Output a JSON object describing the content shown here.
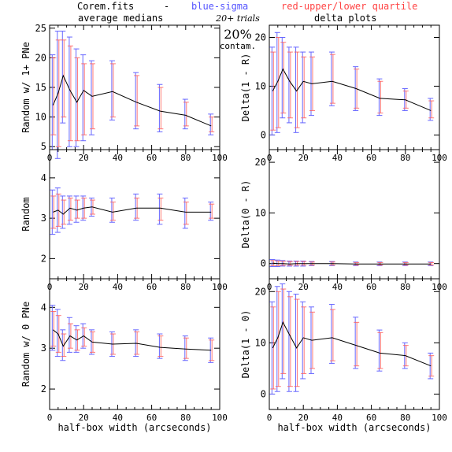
{
  "header": {
    "file": "Corem.fits",
    "dash": "-",
    "blue_label": "blue-sigma",
    "red_label": "red-upper/lower quartile",
    "col1_title": "average medians",
    "col2_title": "delta plots",
    "trials": "20+ trials",
    "contam_pct": "20%",
    "contam": "contam."
  },
  "colors": {
    "line": "#000000",
    "sigma": "#6666ff",
    "quartile": "#ff5555",
    "frame": "#000000"
  },
  "chart_data": [
    {
      "type": "line",
      "ylabel": "Random w/ 1+ PNe",
      "xlabel": "",
      "xlim": [
        0,
        100
      ],
      "ylim": [
        4.5,
        25.5
      ],
      "xticks": [
        0,
        20,
        40,
        60,
        80,
        100
      ],
      "yticks": [
        5,
        10,
        15,
        20,
        25
      ],
      "series": [
        {
          "x": [
            2,
            5,
            8,
            12,
            16,
            20,
            25,
            37,
            51,
            65,
            80,
            95
          ],
          "y": [
            12,
            14,
            17,
            14.5,
            12.5,
            14.5,
            13.5,
            14.3,
            12.5,
            11,
            10.3,
            8.5
          ],
          "sigma_lo": [
            4.5,
            3,
            9,
            5,
            5,
            6,
            7,
            9.5,
            8,
            7.5,
            8,
            7
          ],
          "sigma_hi": [
            20.5,
            24.5,
            24.5,
            23.5,
            21.5,
            20.5,
            19.5,
            19.5,
            17.5,
            15.5,
            13,
            10.5
          ],
          "q_lo": [
            7,
            5,
            10,
            6,
            6,
            7,
            8,
            10,
            8.5,
            8,
            8.5,
            7.5
          ],
          "q_hi": [
            20,
            23,
            23,
            22,
            20,
            19,
            19,
            19,
            17,
            15,
            12.5,
            10
          ]
        }
      ]
    },
    {
      "type": "line",
      "ylabel": "Delta(1 - R)",
      "xlabel": "",
      "xlim": [
        0,
        100
      ],
      "ylim": [
        -3,
        22.5
      ],
      "xticks": [
        0,
        20,
        40,
        60,
        80,
        100
      ],
      "yticks": [
        0,
        10,
        20
      ],
      "series": [
        {
          "x": [
            2,
            5,
            8,
            12,
            16,
            20,
            25,
            37,
            51,
            65,
            80,
            95
          ],
          "y": [
            9,
            11,
            13.5,
            11,
            9,
            11,
            10.5,
            11,
            9.5,
            7.5,
            7.2,
            5
          ],
          "sigma_lo": [
            0,
            0.5,
            3.5,
            2.5,
            0.5,
            2.5,
            4,
            6,
            5,
            4,
            5,
            3
          ],
          "sigma_hi": [
            18,
            21,
            20,
            18,
            18,
            17,
            17,
            17,
            14,
            11.5,
            9.5,
            7.5
          ],
          "q_lo": [
            1,
            1.5,
            4.5,
            3.5,
            1.5,
            3.5,
            5,
            6.5,
            5.5,
            4.5,
            5.5,
            3.5
          ],
          "q_hi": [
            17,
            20,
            19,
            17,
            17,
            16,
            16,
            16.5,
            13.5,
            11,
            9,
            7
          ]
        }
      ]
    },
    {
      "type": "line",
      "ylabel": "Random",
      "xlabel": "",
      "xlim": [
        0,
        100
      ],
      "ylim": [
        1.5,
        4.7
      ],
      "xticks": [
        0,
        20,
        40,
        60,
        80,
        100
      ],
      "yticks": [
        2,
        3,
        4
      ],
      "series": [
        {
          "x": [
            2,
            5,
            8,
            12,
            16,
            20,
            25,
            37,
            51,
            65,
            80,
            95
          ],
          "y": [
            3.15,
            3.2,
            3.1,
            3.25,
            3.2,
            3.25,
            3.28,
            3.15,
            3.25,
            3.25,
            3.15,
            3.15
          ],
          "sigma_lo": [
            2.6,
            2.65,
            2.75,
            2.85,
            2.9,
            2.95,
            3.05,
            2.9,
            2.95,
            2.85,
            2.75,
            2.95
          ],
          "sigma_hi": [
            3.7,
            3.75,
            3.55,
            3.55,
            3.55,
            3.55,
            3.5,
            3.5,
            3.6,
            3.6,
            3.5,
            3.4
          ],
          "q_lo": [
            2.75,
            2.8,
            2.85,
            2.95,
            3.0,
            3.0,
            3.1,
            2.95,
            3.0,
            2.95,
            2.85,
            3.0
          ],
          "q_hi": [
            3.55,
            3.6,
            3.45,
            3.5,
            3.45,
            3.5,
            3.45,
            3.4,
            3.5,
            3.5,
            3.4,
            3.35
          ]
        }
      ]
    },
    {
      "type": "line",
      "ylabel": "Delta(0 - R)",
      "xlabel": "",
      "xlim": [
        0,
        100
      ],
      "ylim": [
        -3,
        22.5
      ],
      "xticks": [
        0,
        20,
        40,
        60,
        80,
        100
      ],
      "yticks": [
        0,
        10,
        20
      ],
      "series": [
        {
          "x": [
            2,
            5,
            8,
            12,
            16,
            20,
            25,
            37,
            51,
            65,
            80,
            95
          ],
          "y": [
            0.1,
            0,
            0,
            -0.1,
            0,
            0,
            0,
            0,
            -0.1,
            -0.1,
            -0.1,
            -0.1
          ],
          "sigma_lo": [
            -0.6,
            -0.6,
            -0.5,
            -0.5,
            -0.5,
            -0.5,
            -0.4,
            -0.4,
            -0.4,
            -0.4,
            -0.4,
            -0.4
          ],
          "sigma_hi": [
            0.8,
            0.7,
            0.6,
            0.5,
            0.5,
            0.5,
            0.4,
            0.4,
            0.3,
            0.3,
            0.3,
            0.3
          ],
          "q_lo": [
            -0.4,
            -0.4,
            -0.35,
            -0.35,
            -0.3,
            -0.3,
            -0.3,
            -0.3,
            -0.3,
            -0.3,
            -0.3,
            -0.3
          ],
          "q_hi": [
            0.6,
            0.5,
            0.45,
            0.4,
            0.4,
            0.4,
            0.3,
            0.3,
            0.2,
            0.2,
            0.2,
            0.2
          ]
        }
      ]
    },
    {
      "type": "line",
      "ylabel": "Random w/ 0 PNe",
      "xlabel": "half-box width (arcseconds)",
      "xlim": [
        0,
        100
      ],
      "ylim": [
        1.5,
        4.7
      ],
      "xticks": [
        0,
        20,
        40,
        60,
        80,
        100
      ],
      "yticks": [
        2,
        3,
        4
      ],
      "series": [
        {
          "x": [
            2,
            5,
            8,
            12,
            16,
            20,
            25,
            37,
            51,
            65,
            80,
            95
          ],
          "y": [
            3.45,
            3.35,
            3.05,
            3.3,
            3.2,
            3.3,
            3.15,
            3.1,
            3.12,
            3.02,
            2.98,
            2.95
          ],
          "sigma_lo": [
            2.95,
            2.8,
            2.7,
            2.9,
            2.9,
            3.0,
            2.85,
            2.8,
            2.8,
            2.75,
            2.7,
            2.65
          ],
          "sigma_hi": [
            4.05,
            3.95,
            3.45,
            3.75,
            3.55,
            3.6,
            3.45,
            3.4,
            3.45,
            3.35,
            3.3,
            3.25
          ],
          "q_lo": [
            3.05,
            2.9,
            2.8,
            3.0,
            2.95,
            3.05,
            2.9,
            2.85,
            2.85,
            2.8,
            2.75,
            2.7
          ],
          "q_hi": [
            3.9,
            3.8,
            3.35,
            3.6,
            3.45,
            3.5,
            3.4,
            3.35,
            3.4,
            3.3,
            3.25,
            3.2
          ]
        }
      ]
    },
    {
      "type": "line",
      "ylabel": "Delta(1 - 0)",
      "xlabel": "half-box width (arcseconds)",
      "xlim": [
        0,
        100
      ],
      "ylim": [
        -3,
        22.5
      ],
      "xticks": [
        0,
        20,
        40,
        60,
        80,
        100
      ],
      "yticks": [
        0,
        10,
        20
      ],
      "series": [
        {
          "x": [
            2,
            5,
            8,
            12,
            16,
            20,
            25,
            37,
            51,
            65,
            80,
            95
          ],
          "y": [
            9,
            11,
            14,
            11.5,
            9,
            11,
            10.5,
            11,
            9.5,
            8,
            7.5,
            5.5
          ],
          "sigma_lo": [
            0,
            0.5,
            3,
            0.5,
            0.5,
            3,
            4,
            6,
            5,
            4.5,
            5,
            3
          ],
          "sigma_hi": [
            18,
            21,
            21.5,
            20,
            19.5,
            18,
            17,
            17.5,
            15,
            12.5,
            10,
            8
          ],
          "q_lo": [
            1,
            1.5,
            4,
            1.5,
            1.5,
            4,
            5,
            6.5,
            5.5,
            5,
            5.5,
            3.5
          ],
          "q_hi": [
            17,
            20,
            20.5,
            19,
            18.5,
            17,
            16,
            16.5,
            14,
            12,
            9.5,
            7.5
          ]
        }
      ]
    }
  ]
}
